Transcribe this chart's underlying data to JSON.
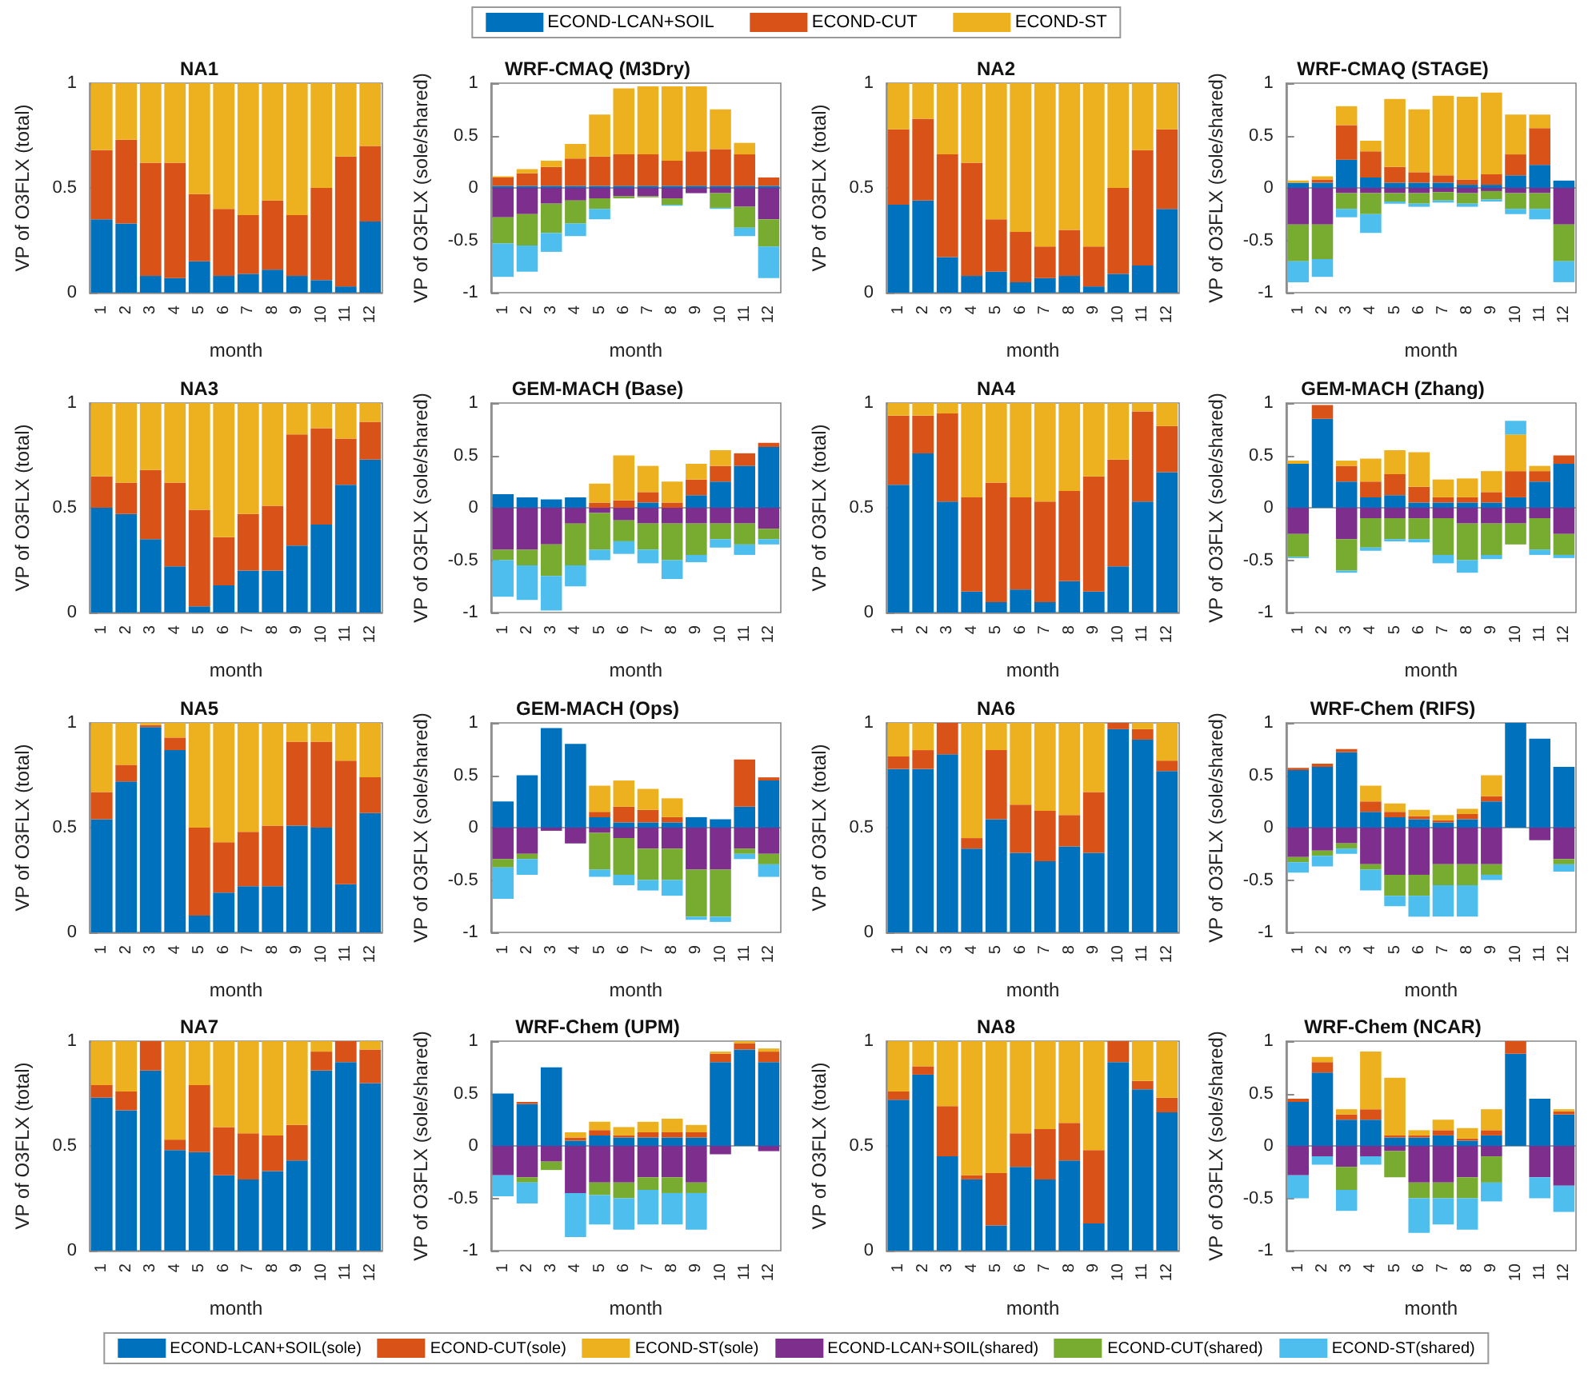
{
  "chart_data": [
    {
      "type": "bar",
      "title": "NA1",
      "xlabel": "month",
      "ylabel": "VP of O3FLX (total)",
      "categories": [
        "1",
        "2",
        "3",
        "4",
        "5",
        "6",
        "7",
        "8",
        "9",
        "10",
        "11",
        "12"
      ],
      "stacked": true,
      "ylim": [
        0,
        1
      ],
      "yticks": [
        0,
        0.5,
        1
      ],
      "legend": "top",
      "series": [
        {
          "name": "ECOND-LCAN+SOIL",
          "color": "#0072bd",
          "values": [
            0.35,
            0.33,
            0.08,
            0.07,
            0.15,
            0.08,
            0.09,
            0.11,
            0.08,
            0.06,
            0.03,
            0.34
          ]
        },
        {
          "name": "ECOND-CUT",
          "color": "#d95319",
          "values": [
            0.33,
            0.4,
            0.54,
            0.55,
            0.32,
            0.32,
            0.28,
            0.33,
            0.29,
            0.44,
            0.62,
            0.36
          ]
        },
        {
          "name": "ECOND-ST",
          "color": "#edb120",
          "values": [
            0.32,
            0.27,
            0.38,
            0.38,
            0.53,
            0.6,
            0.63,
            0.56,
            0.63,
            0.5,
            0.35,
            0.3
          ]
        }
      ]
    },
    {
      "type": "bar",
      "title": "WRF-CMAQ (M3Dry)",
      "xlabel": "month",
      "ylabel": "VP of O3FLX (sole/shared)",
      "categories": [
        "1",
        "2",
        "3",
        "4",
        "5",
        "6",
        "7",
        "8",
        "9",
        "10",
        "11",
        "12"
      ],
      "stacked": true,
      "ylim": [
        -1,
        1
      ],
      "yticks": [
        -1,
        -0.5,
        0,
        0.5,
        1
      ],
      "legend": "bottom",
      "series": [
        {
          "name": "ECOND-LCAN+SOIL(sole)",
          "color": "#0072bd",
          "values": [
            0.02,
            0.02,
            0.02,
            0.02,
            0.02,
            0.02,
            0.02,
            0.02,
            0.02,
            0.02,
            0.02,
            0.02
          ]
        },
        {
          "name": "ECOND-CUT(sole)",
          "color": "#d95319",
          "values": [
            0.08,
            0.12,
            0.18,
            0.26,
            0.28,
            0.3,
            0.3,
            0.24,
            0.33,
            0.35,
            0.3,
            0.08
          ]
        },
        {
          "name": "ECOND-ST(sole)",
          "color": "#edb120",
          "values": [
            0.01,
            0.04,
            0.06,
            0.14,
            0.4,
            0.63,
            0.65,
            0.71,
            0.62,
            0.38,
            0.11,
            0
          ]
        },
        {
          "name": "ECOND-LCAN+SOIL(shared)",
          "color": "#7e2f8e",
          "values": [
            -0.28,
            -0.25,
            -0.15,
            -0.12,
            -0.1,
            -0.08,
            -0.08,
            -0.1,
            -0.05,
            -0.05,
            -0.18,
            -0.3
          ]
        },
        {
          "name": "ECOND-CUT(shared)",
          "color": "#77ac30",
          "values": [
            -0.25,
            -0.3,
            -0.28,
            -0.22,
            -0.1,
            -0.02,
            -0.01,
            -0.06,
            0,
            -0.14,
            -0.2,
            -0.26
          ]
        },
        {
          "name": "ECOND-ST(shared)",
          "color": "#4dbeee",
          "values": [
            -0.32,
            -0.25,
            -0.18,
            -0.12,
            -0.1,
            0,
            0,
            -0.01,
            0,
            -0.01,
            -0.08,
            -0.3
          ]
        }
      ]
    },
    {
      "type": "bar",
      "title": "NA2",
      "xlabel": "month",
      "ylabel": "VP of O3FLX (total)",
      "categories": [
        "1",
        "2",
        "3",
        "4",
        "5",
        "6",
        "7",
        "8",
        "9",
        "10",
        "11",
        "12"
      ],
      "stacked": true,
      "ylim": [
        0,
        1
      ],
      "yticks": [
        0,
        0.5,
        1
      ],
      "series": [
        {
          "color": "#0072bd",
          "values": [
            0.42,
            0.44,
            0.17,
            0.08,
            0.1,
            0.05,
            0.07,
            0.08,
            0.03,
            0.09,
            0.13,
            0.4
          ]
        },
        {
          "color": "#d95319",
          "values": [
            0.36,
            0.39,
            0.49,
            0.54,
            0.25,
            0.24,
            0.15,
            0.22,
            0.19,
            0.41,
            0.55,
            0.38
          ]
        },
        {
          "color": "#edb120",
          "values": [
            0.22,
            0.17,
            0.34,
            0.38,
            0.65,
            0.71,
            0.78,
            0.7,
            0.78,
            0.5,
            0.32,
            0.22
          ]
        }
      ]
    },
    {
      "type": "bar",
      "title": "WRF-CMAQ (STAGE)",
      "xlabel": "month",
      "ylabel": "VP of O3FLX (sole/shared)",
      "categories": [
        "1",
        "2",
        "3",
        "4",
        "5",
        "6",
        "7",
        "8",
        "9",
        "10",
        "11",
        "12"
      ],
      "stacked": true,
      "ylim": [
        -1,
        1
      ],
      "yticks": [
        -1,
        -0.5,
        0,
        0.5,
        1
      ],
      "series": [
        {
          "color": "#0072bd",
          "values": [
            0.05,
            0.05,
            0.27,
            0.1,
            0.05,
            0.05,
            0.05,
            0.03,
            0.03,
            0.12,
            0.22,
            0.07
          ]
        },
        {
          "color": "#d95319",
          "values": [
            0,
            0.03,
            0.33,
            0.25,
            0.15,
            0.1,
            0.07,
            0.05,
            0.1,
            0.2,
            0.35,
            0
          ]
        },
        {
          "color": "#edb120",
          "values": [
            0.02,
            0.03,
            0.18,
            0.1,
            0.65,
            0.6,
            0.76,
            0.79,
            0.78,
            0.38,
            0.13,
            0
          ]
        },
        {
          "color": "#7e2f8e",
          "values": [
            -0.35,
            -0.35,
            -0.05,
            -0.05,
            -0.05,
            -0.05,
            -0.04,
            -0.05,
            -0.03,
            -0.05,
            -0.05,
            -0.35
          ]
        },
        {
          "color": "#77ac30",
          "values": [
            -0.35,
            -0.33,
            -0.15,
            -0.2,
            -0.08,
            -0.1,
            -0.08,
            -0.1,
            -0.08,
            -0.15,
            -0.15,
            -0.35
          ]
        },
        {
          "color": "#4dbeee",
          "values": [
            -0.2,
            -0.17,
            -0.08,
            -0.18,
            -0.02,
            -0.03,
            -0.02,
            -0.03,
            -0.02,
            -0.05,
            -0.1,
            -0.2
          ]
        }
      ]
    },
    {
      "type": "bar",
      "title": "NA3",
      "xlabel": "month",
      "ylabel": "VP of O3FLX (total)",
      "categories": [
        "1",
        "2",
        "3",
        "4",
        "5",
        "6",
        "7",
        "8",
        "9",
        "10",
        "11",
        "12"
      ],
      "stacked": true,
      "ylim": [
        0,
        1
      ],
      "yticks": [
        0,
        0.5,
        1
      ],
      "series": [
        {
          "color": "#0072bd",
          "values": [
            0.5,
            0.47,
            0.35,
            0.22,
            0.03,
            0.13,
            0.2,
            0.2,
            0.32,
            0.42,
            0.61,
            0.73
          ]
        },
        {
          "color": "#d95319",
          "values": [
            0.15,
            0.15,
            0.33,
            0.4,
            0.46,
            0.23,
            0.27,
            0.31,
            0.53,
            0.46,
            0.22,
            0.18
          ]
        },
        {
          "color": "#edb120",
          "values": [
            0.35,
            0.38,
            0.32,
            0.38,
            0.51,
            0.64,
            0.53,
            0.49,
            0.15,
            0.12,
            0.17,
            0.09
          ]
        }
      ]
    },
    {
      "type": "bar",
      "title": "GEM-MACH (Base)",
      "xlabel": "month",
      "ylabel": "VP of O3FLX (sole/shared)",
      "categories": [
        "1",
        "2",
        "3",
        "4",
        "5",
        "6",
        "7",
        "8",
        "9",
        "10",
        "11",
        "12"
      ],
      "stacked": true,
      "ylim": [
        -1,
        1
      ],
      "yticks": [
        -1,
        -0.5,
        0,
        0.5,
        1
      ],
      "series": [
        {
          "color": "#0072bd",
          "values": [
            0.13,
            0.1,
            0.08,
            0.1,
            0,
            0,
            0.05,
            0,
            0.12,
            0.25,
            0.4,
            0.58
          ]
        },
        {
          "color": "#d95319",
          "values": [
            0,
            0,
            0,
            0,
            0.05,
            0.07,
            0.1,
            0.05,
            0.15,
            0.15,
            0.12,
            0.04
          ]
        },
        {
          "color": "#edb120",
          "values": [
            0,
            0,
            0,
            0,
            0.18,
            0.43,
            0.25,
            0.2,
            0.15,
            0.15,
            0,
            0
          ]
        },
        {
          "color": "#7e2f8e",
          "values": [
            -0.4,
            -0.4,
            -0.35,
            -0.15,
            -0.05,
            -0.12,
            -0.15,
            -0.15,
            -0.15,
            -0.15,
            -0.15,
            -0.2
          ]
        },
        {
          "color": "#77ac30",
          "values": [
            -0.1,
            -0.15,
            -0.3,
            -0.4,
            -0.35,
            -0.2,
            -0.25,
            -0.35,
            -0.3,
            -0.15,
            -0.2,
            -0.1
          ]
        },
        {
          "color": "#4dbeee",
          "values": [
            -0.35,
            -0.33,
            -0.33,
            -0.2,
            -0.1,
            -0.12,
            -0.13,
            -0.18,
            -0.07,
            -0.08,
            -0.1,
            -0.05
          ]
        }
      ]
    },
    {
      "type": "bar",
      "title": "NA4",
      "xlabel": "month",
      "ylabel": "VP of O3FLX (total)",
      "categories": [
        "1",
        "2",
        "3",
        "4",
        "5",
        "6",
        "7",
        "8",
        "9",
        "10",
        "11",
        "12"
      ],
      "stacked": true,
      "ylim": [
        0,
        1
      ],
      "yticks": [
        0,
        0.5,
        1
      ],
      "series": [
        {
          "color": "#0072bd",
          "values": [
            0.61,
            0.76,
            0.53,
            0.1,
            0.05,
            0.11,
            0.05,
            0.15,
            0.1,
            0.22,
            0.53,
            0.67
          ]
        },
        {
          "color": "#d95319",
          "values": [
            0.33,
            0.18,
            0.42,
            0.45,
            0.57,
            0.44,
            0.48,
            0.43,
            0.55,
            0.51,
            0.43,
            0.22
          ]
        },
        {
          "color": "#edb120",
          "values": [
            0.06,
            0.06,
            0.05,
            0.45,
            0.38,
            0.45,
            0.47,
            0.42,
            0.35,
            0.27,
            0.04,
            0.11
          ]
        }
      ]
    },
    {
      "type": "bar",
      "title": "GEM-MACH (Zhang)",
      "xlabel": "month",
      "ylabel": "VP of O3FLX (sole/shared)",
      "categories": [
        "1",
        "2",
        "3",
        "4",
        "5",
        "6",
        "7",
        "8",
        "9",
        "10",
        "11",
        "12"
      ],
      "stacked": true,
      "ylim": [
        -1,
        1
      ],
      "yticks": [
        -1,
        -0.5,
        0,
        0.5,
        1
      ],
      "series": [
        {
          "color": "#0072bd",
          "values": [
            0.42,
            0.85,
            0.25,
            0.1,
            0.12,
            0.05,
            0.05,
            0.05,
            0.05,
            0.1,
            0.25,
            0.42
          ]
        },
        {
          "color": "#d95319",
          "values": [
            0,
            0.13,
            0.15,
            0.15,
            0.2,
            0.15,
            0.05,
            0.05,
            0.1,
            0.25,
            0.1,
            0.08
          ]
        },
        {
          "color": "#edb120",
          "values": [
            0.03,
            0,
            0.05,
            0.22,
            0.23,
            0.33,
            0.17,
            0.18,
            0.2,
            0.35,
            0.05,
            0
          ]
        },
        {
          "color": "#7e2f8e",
          "values": [
            -0.25,
            0,
            -0.3,
            -0.1,
            -0.1,
            -0.1,
            -0.1,
            -0.15,
            -0.15,
            -0.15,
            -0.1,
            -0.25
          ]
        },
        {
          "color": "#77ac30",
          "values": [
            -0.22,
            0,
            -0.3,
            -0.28,
            -0.2,
            -0.2,
            -0.35,
            -0.35,
            -0.3,
            -0.2,
            -0.3,
            -0.2
          ]
        },
        {
          "color": "#4dbeee",
          "values": [
            -0.01,
            0,
            -0.02,
            -0.03,
            -0.02,
            -0.03,
            -0.08,
            -0.12,
            -0.04,
            0.13,
            -0.05,
            -0.03
          ]
        }
      ]
    },
    {
      "type": "bar",
      "title": "NA5",
      "xlabel": "month",
      "ylabel": "VP of O3FLX (total)",
      "categories": [
        "1",
        "2",
        "3",
        "4",
        "5",
        "6",
        "7",
        "8",
        "9",
        "10",
        "11",
        "12"
      ],
      "stacked": true,
      "ylim": [
        0,
        1
      ],
      "yticks": [
        0,
        0.5,
        1
      ],
      "series": [
        {
          "color": "#0072bd",
          "values": [
            0.54,
            0.72,
            0.98,
            0.87,
            0.08,
            0.19,
            0.22,
            0.22,
            0.51,
            0.5,
            0.23,
            0.57
          ]
        },
        {
          "color": "#d95319",
          "values": [
            0.13,
            0.08,
            0.01,
            0.06,
            0.42,
            0.24,
            0.26,
            0.29,
            0.4,
            0.41,
            0.59,
            0.17
          ]
        },
        {
          "color": "#edb120",
          "values": [
            0.33,
            0.2,
            0.01,
            0.07,
            0.5,
            0.57,
            0.52,
            0.49,
            0.09,
            0.09,
            0.18,
            0.26
          ]
        }
      ]
    },
    {
      "type": "bar",
      "title": "GEM-MACH (Ops)",
      "xlabel": "month",
      "ylabel": "VP of O3FLX (sole/shared)",
      "categories": [
        "1",
        "2",
        "3",
        "4",
        "5",
        "6",
        "7",
        "8",
        "9",
        "10",
        "11",
        "12"
      ],
      "stacked": true,
      "ylim": [
        -1,
        1
      ],
      "yticks": [
        -1,
        -0.5,
        0,
        0.5,
        1
      ],
      "series": [
        {
          "color": "#0072bd",
          "values": [
            0.25,
            0.5,
            0.95,
            0.8,
            0.1,
            0.05,
            0.05,
            0.05,
            0.1,
            0.08,
            0.2,
            0.45
          ]
        },
        {
          "color": "#d95319",
          "values": [
            0,
            0,
            0,
            0,
            0.05,
            0.15,
            0.12,
            0.05,
            0,
            0,
            0.45,
            0.03
          ]
        },
        {
          "color": "#edb120",
          "values": [
            0,
            0,
            0,
            0,
            0.25,
            0.25,
            0.2,
            0.18,
            0,
            0,
            0,
            0
          ]
        },
        {
          "color": "#7e2f8e",
          "values": [
            -0.3,
            -0.25,
            -0.03,
            -0.15,
            -0.05,
            -0.1,
            -0.2,
            -0.2,
            -0.4,
            -0.4,
            -0.2,
            -0.25
          ]
        },
        {
          "color": "#77ac30",
          "values": [
            -0.08,
            -0.05,
            0,
            0,
            -0.35,
            -0.35,
            -0.3,
            -0.3,
            -0.45,
            -0.45,
            -0.05,
            -0.1
          ]
        },
        {
          "color": "#4dbeee",
          "values": [
            -0.3,
            -0.15,
            0,
            0,
            -0.07,
            -0.1,
            -0.1,
            -0.15,
            -0.03,
            -0.05,
            -0.05,
            -0.12
          ]
        }
      ]
    },
    {
      "type": "bar",
      "title": "NA6",
      "xlabel": "month",
      "ylabel": "VP of O3FLX (total)",
      "categories": [
        "1",
        "2",
        "3",
        "4",
        "5",
        "6",
        "7",
        "8",
        "9",
        "10",
        "11",
        "12"
      ],
      "stacked": true,
      "ylim": [
        0,
        1
      ],
      "yticks": [
        0,
        0.5,
        1
      ],
      "series": [
        {
          "color": "#0072bd",
          "values": [
            0.78,
            0.78,
            0.85,
            0.4,
            0.54,
            0.38,
            0.34,
            0.41,
            0.38,
            0.97,
            0.92,
            0.77
          ]
        },
        {
          "color": "#d95319",
          "values": [
            0.06,
            0.09,
            0.15,
            0.05,
            0.33,
            0.23,
            0.24,
            0.15,
            0.29,
            0.03,
            0.05,
            0.05
          ]
        },
        {
          "color": "#edb120",
          "values": [
            0.16,
            0.13,
            0,
            0.55,
            0.13,
            0.39,
            0.42,
            0.44,
            0.33,
            0,
            0.03,
            0.18
          ]
        }
      ]
    },
    {
      "type": "bar",
      "title": "WRF-Chem (RIFS)",
      "xlabel": "month",
      "ylabel": "VP of O3FLX (sole/shared)",
      "categories": [
        "1",
        "2",
        "3",
        "4",
        "5",
        "6",
        "7",
        "8",
        "9",
        "10",
        "11",
        "12"
      ],
      "stacked": true,
      "ylim": [
        -1,
        1
      ],
      "yticks": [
        -1,
        -0.5,
        0,
        0.5,
        1
      ],
      "series": [
        {
          "color": "#0072bd",
          "values": [
            0.55,
            0.58,
            0.72,
            0.15,
            0.1,
            0.08,
            0.05,
            0.08,
            0.25,
            1,
            0.85,
            0.58
          ]
        },
        {
          "color": "#d95319",
          "values": [
            0.02,
            0.03,
            0.03,
            0.1,
            0.05,
            0.03,
            0.02,
            0.05,
            0.05,
            0,
            0,
            0
          ]
        },
        {
          "color": "#edb120",
          "values": [
            0,
            0,
            0,
            0.15,
            0.08,
            0.06,
            0.05,
            0.05,
            0.2,
            0,
            0,
            0
          ]
        },
        {
          "color": "#7e2f8e",
          "values": [
            -0.28,
            -0.22,
            -0.15,
            -0.35,
            -0.45,
            -0.45,
            -0.35,
            -0.35,
            -0.35,
            0,
            -0.12,
            -0.3
          ]
        },
        {
          "color": "#77ac30",
          "values": [
            -0.05,
            -0.05,
            -0.05,
            -0.05,
            -0.2,
            -0.2,
            -0.2,
            -0.2,
            -0.1,
            0,
            0,
            -0.05
          ]
        },
        {
          "color": "#4dbeee",
          "values": [
            -0.1,
            -0.1,
            -0.05,
            -0.2,
            -0.1,
            -0.2,
            -0.3,
            -0.3,
            -0.05,
            0,
            0,
            -0.07
          ]
        }
      ]
    },
    {
      "type": "bar",
      "title": "NA7",
      "xlabel": "month",
      "ylabel": "VP of O3FLX (total)",
      "categories": [
        "1",
        "2",
        "3",
        "4",
        "5",
        "6",
        "7",
        "8",
        "9",
        "10",
        "11",
        "12"
      ],
      "stacked": true,
      "ylim": [
        0,
        1
      ],
      "yticks": [
        0,
        0.5,
        1
      ],
      "series": [
        {
          "color": "#0072bd",
          "values": [
            0.73,
            0.67,
            0.86,
            0.48,
            0.47,
            0.36,
            0.34,
            0.38,
            0.43,
            0.86,
            0.9,
            0.8
          ]
        },
        {
          "color": "#d95319",
          "values": [
            0.06,
            0.09,
            0.14,
            0.05,
            0.32,
            0.23,
            0.22,
            0.17,
            0.17,
            0.09,
            0.1,
            0.16
          ]
        },
        {
          "color": "#edb120",
          "values": [
            0.21,
            0.24,
            0,
            0.47,
            0.21,
            0.41,
            0.44,
            0.45,
            0.4,
            0.05,
            0,
            0.04
          ]
        }
      ]
    },
    {
      "type": "bar",
      "title": "WRF-Chem (UPM)",
      "xlabel": "month",
      "ylabel": "VP of O3FLX (sole/shared)",
      "categories": [
        "1",
        "2",
        "3",
        "4",
        "5",
        "6",
        "7",
        "8",
        "9",
        "10",
        "11",
        "12"
      ],
      "stacked": true,
      "ylim": [
        -1,
        1
      ],
      "yticks": [
        -1,
        -0.5,
        0,
        0.5,
        1
      ],
      "series": [
        {
          "color": "#0072bd",
          "values": [
            0.5,
            0.4,
            0.75,
            0.05,
            0.1,
            0.08,
            0.08,
            0.08,
            0.08,
            0.8,
            0.92,
            0.8
          ]
        },
        {
          "color": "#d95319",
          "values": [
            0,
            0.02,
            0,
            0.03,
            0.05,
            0.02,
            0.05,
            0.05,
            0.05,
            0.08,
            0.06,
            0.1
          ]
        },
        {
          "color": "#edb120",
          "values": [
            0,
            0,
            0,
            0.05,
            0.08,
            0.08,
            0.1,
            0.13,
            0.07,
            0.02,
            0.02,
            0.03
          ]
        },
        {
          "color": "#7e2f8e",
          "values": [
            -0.28,
            -0.3,
            -0.15,
            -0.45,
            -0.35,
            -0.35,
            -0.3,
            -0.3,
            -0.35,
            -0.08,
            0,
            -0.05
          ]
        },
        {
          "color": "#77ac30",
          "values": [
            0,
            -0.05,
            -0.08,
            0,
            -0.12,
            -0.15,
            -0.12,
            -0.15,
            -0.1,
            0,
            0,
            0
          ]
        },
        {
          "color": "#4dbeee",
          "values": [
            -0.2,
            -0.2,
            0,
            -0.42,
            -0.28,
            -0.3,
            -0.33,
            -0.3,
            -0.35,
            0,
            0,
            0
          ]
        }
      ]
    },
    {
      "type": "bar",
      "title": "NA8",
      "xlabel": "month",
      "ylabel": "VP of O3FLX (total)",
      "categories": [
        "1",
        "2",
        "3",
        "4",
        "5",
        "6",
        "7",
        "8",
        "9",
        "10",
        "11",
        "12"
      ],
      "stacked": true,
      "ylim": [
        0,
        1
      ],
      "yticks": [
        0,
        0.5,
        1
      ],
      "series": [
        {
          "color": "#0072bd",
          "values": [
            0.72,
            0.84,
            0.45,
            0.34,
            0.12,
            0.4,
            0.34,
            0.43,
            0.13,
            0.9,
            0.77,
            0.66
          ]
        },
        {
          "color": "#d95319",
          "values": [
            0.04,
            0.04,
            0.24,
            0.02,
            0.25,
            0.16,
            0.24,
            0.18,
            0.35,
            0.1,
            0.04,
            0.07
          ]
        },
        {
          "color": "#edb120",
          "values": [
            0.24,
            0.12,
            0.31,
            0.64,
            0.63,
            0.44,
            0.42,
            0.39,
            0.52,
            0,
            0.19,
            0.27
          ]
        }
      ]
    },
    {
      "type": "bar",
      "title": "WRF-Chem (NCAR)",
      "xlabel": "month",
      "ylabel": "VP of O3FLX (sole/shared)",
      "categories": [
        "1",
        "2",
        "3",
        "4",
        "5",
        "6",
        "7",
        "8",
        "9",
        "10",
        "11",
        "12"
      ],
      "stacked": true,
      "ylim": [
        -1,
        1
      ],
      "yticks": [
        -1,
        -0.5,
        0,
        0.5,
        1
      ],
      "series": [
        {
          "color": "#0072bd",
          "values": [
            0.42,
            0.7,
            0.25,
            0.25,
            0.08,
            0.08,
            0.1,
            0.05,
            0.1,
            0.88,
            0.45,
            0.3
          ]
        },
        {
          "color": "#d95319",
          "values": [
            0.03,
            0.1,
            0.05,
            0.1,
            0.02,
            0.02,
            0.05,
            0.02,
            0.05,
            0.12,
            0,
            0.03
          ]
        },
        {
          "color": "#edb120",
          "values": [
            0,
            0.05,
            0.05,
            0.55,
            0.55,
            0.05,
            0.1,
            0.1,
            0.2,
            0,
            0,
            0.02
          ]
        },
        {
          "color": "#7e2f8e",
          "values": [
            -0.28,
            -0.1,
            -0.2,
            -0.1,
            -0.05,
            -0.35,
            -0.35,
            -0.3,
            -0.1,
            0,
            -0.3,
            -0.38
          ]
        },
        {
          "color": "#77ac30",
          "values": [
            0,
            0,
            -0.22,
            0,
            -0.25,
            -0.15,
            -0.15,
            -0.2,
            -0.25,
            0,
            0,
            0
          ]
        },
        {
          "color": "#4dbeee",
          "values": [
            -0.22,
            -0.08,
            -0.2,
            -0.08,
            0,
            -0.33,
            -0.25,
            -0.3,
            -0.18,
            0,
            -0.2,
            -0.25
          ]
        }
      ]
    }
  ]
}
